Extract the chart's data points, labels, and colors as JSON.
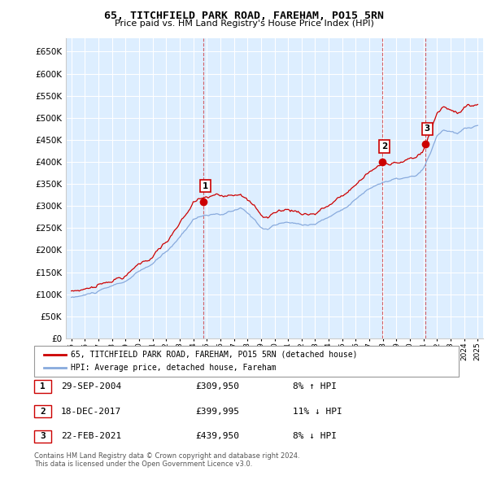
{
  "title": "65, TITCHFIELD PARK ROAD, FAREHAM, PO15 5RN",
  "subtitle": "Price paid vs. HM Land Registry's House Price Index (HPI)",
  "ylim": [
    0,
    680000
  ],
  "yticks": [
    0,
    50000,
    100000,
    150000,
    200000,
    250000,
    300000,
    350000,
    400000,
    450000,
    500000,
    550000,
    600000,
    650000
  ],
  "background_color": "#ffffff",
  "plot_bg_color": "#ddeeff",
  "grid_color": "#ffffff",
  "sale_color": "#cc0000",
  "hpi_color": "#88aadd",
  "sale_label": "65, TITCHFIELD PARK ROAD, FAREHAM, PO15 5RN (detached house)",
  "hpi_label": "HPI: Average price, detached house, Fareham",
  "transactions": [
    {
      "num": 1,
      "date": "29-SEP-2004",
      "price": 309950,
      "pct": "8%",
      "dir": "↑",
      "year": 2004.75
    },
    {
      "num": 2,
      "date": "18-DEC-2017",
      "price": 399995,
      "pct": "11%",
      "dir": "↓",
      "year": 2017.96
    },
    {
      "num": 3,
      "date": "22-FEB-2021",
      "price": 439950,
      "pct": "8%",
      "dir": "↓",
      "year": 2021.13
    }
  ],
  "footnote1": "Contains HM Land Registry data © Crown copyright and database right 2024.",
  "footnote2": "This data is licensed under the Open Government Licence v3.0."
}
